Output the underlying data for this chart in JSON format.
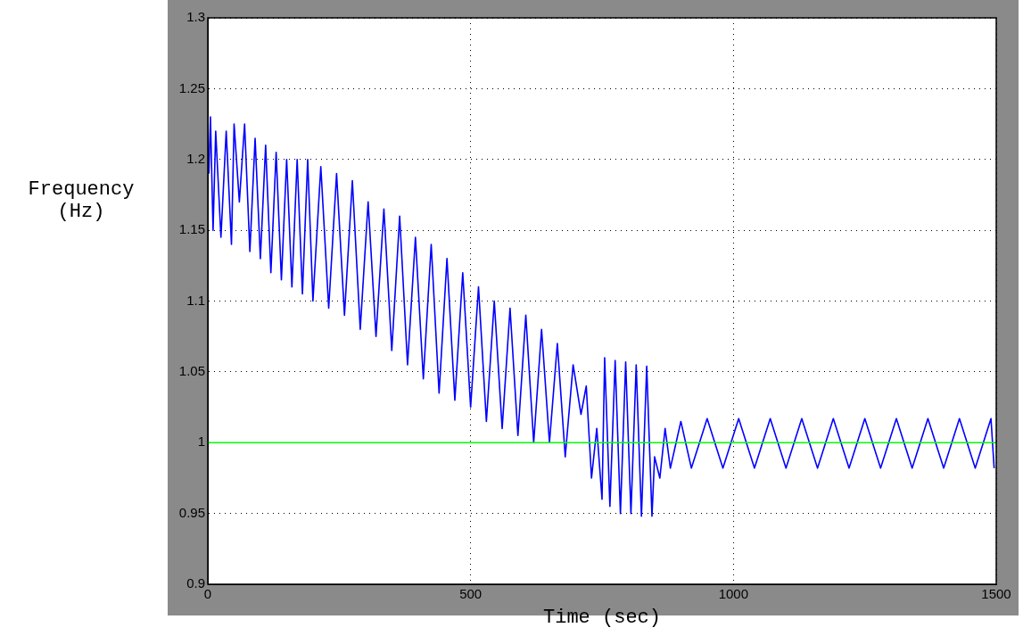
{
  "chart_data": {
    "type": "line",
    "xlabel": "Time (sec)",
    "ylabel": "Frequency (Hz)",
    "xlim": [
      0,
      1500
    ],
    "xticks": [
      0,
      500,
      1000,
      1500
    ],
    "ylim": [
      0.9,
      1.3
    ],
    "yticks": [
      0.9,
      0.95,
      1,
      1.05,
      1.1,
      1.15,
      1.2,
      1.25,
      1.3
    ],
    "grid": true,
    "line_style": "solid",
    "marker": "none",
    "series": [
      {
        "color": "#0000ff",
        "x": [
          2,
          5,
          10,
          15,
          25,
          35,
          45,
          50,
          60,
          70,
          80,
          90,
          100,
          110,
          120,
          130,
          140,
          150,
          160,
          170,
          180,
          190,
          200,
          215,
          230,
          245,
          260,
          275,
          290,
          305,
          320,
          335,
          350,
          365,
          380,
          395,
          410,
          425,
          440,
          455,
          470,
          485,
          500,
          515,
          530,
          545,
          560,
          575,
          590,
          605,
          620,
          635,
          650,
          665,
          680,
          695,
          710,
          720,
          730,
          740,
          750,
          755,
          765,
          775,
          785,
          795,
          805,
          815,
          825,
          835,
          845,
          850,
          860,
          870,
          880,
          900,
          920,
          950,
          980,
          1010,
          1040,
          1070,
          1100,
          1130,
          1160,
          1190,
          1220,
          1250,
          1280,
          1310,
          1340,
          1370,
          1400,
          1430,
          1460,
          1490,
          1496
        ],
        "values": [
          1.19,
          1.23,
          1.15,
          1.22,
          1.145,
          1.22,
          1.14,
          1.225,
          1.17,
          1.225,
          1.135,
          1.215,
          1.13,
          1.21,
          1.12,
          1.205,
          1.115,
          1.2,
          1.11,
          1.2,
          1.105,
          1.2,
          1.1,
          1.195,
          1.095,
          1.19,
          1.09,
          1.185,
          1.08,
          1.17,
          1.075,
          1.165,
          1.065,
          1.16,
          1.055,
          1.145,
          1.045,
          1.14,
          1.035,
          1.13,
          1.03,
          1.12,
          1.025,
          1.11,
          1.015,
          1.1,
          1.01,
          1.095,
          1.005,
          1.09,
          1.0,
          1.08,
          1.0,
          1.07,
          0.99,
          1.055,
          1.02,
          1.04,
          0.975,
          1.01,
          0.96,
          1.06,
          0.955,
          1.058,
          0.95,
          1.057,
          0.95,
          1.055,
          0.948,
          1.054,
          0.948,
          0.99,
          0.975,
          1.01,
          0.982,
          1.015,
          0.982,
          1.017,
          0.982,
          1.017,
          0.982,
          1.017,
          0.982,
          1.017,
          0.982,
          1.017,
          0.982,
          1.017,
          0.982,
          1.017,
          0.982,
          1.017,
          0.982,
          1.017,
          0.982,
          1.017,
          0.982
        ]
      }
    ],
    "ref_lines": [
      {
        "axis": "y",
        "value": 1,
        "color": "#00ff00"
      }
    ]
  }
}
